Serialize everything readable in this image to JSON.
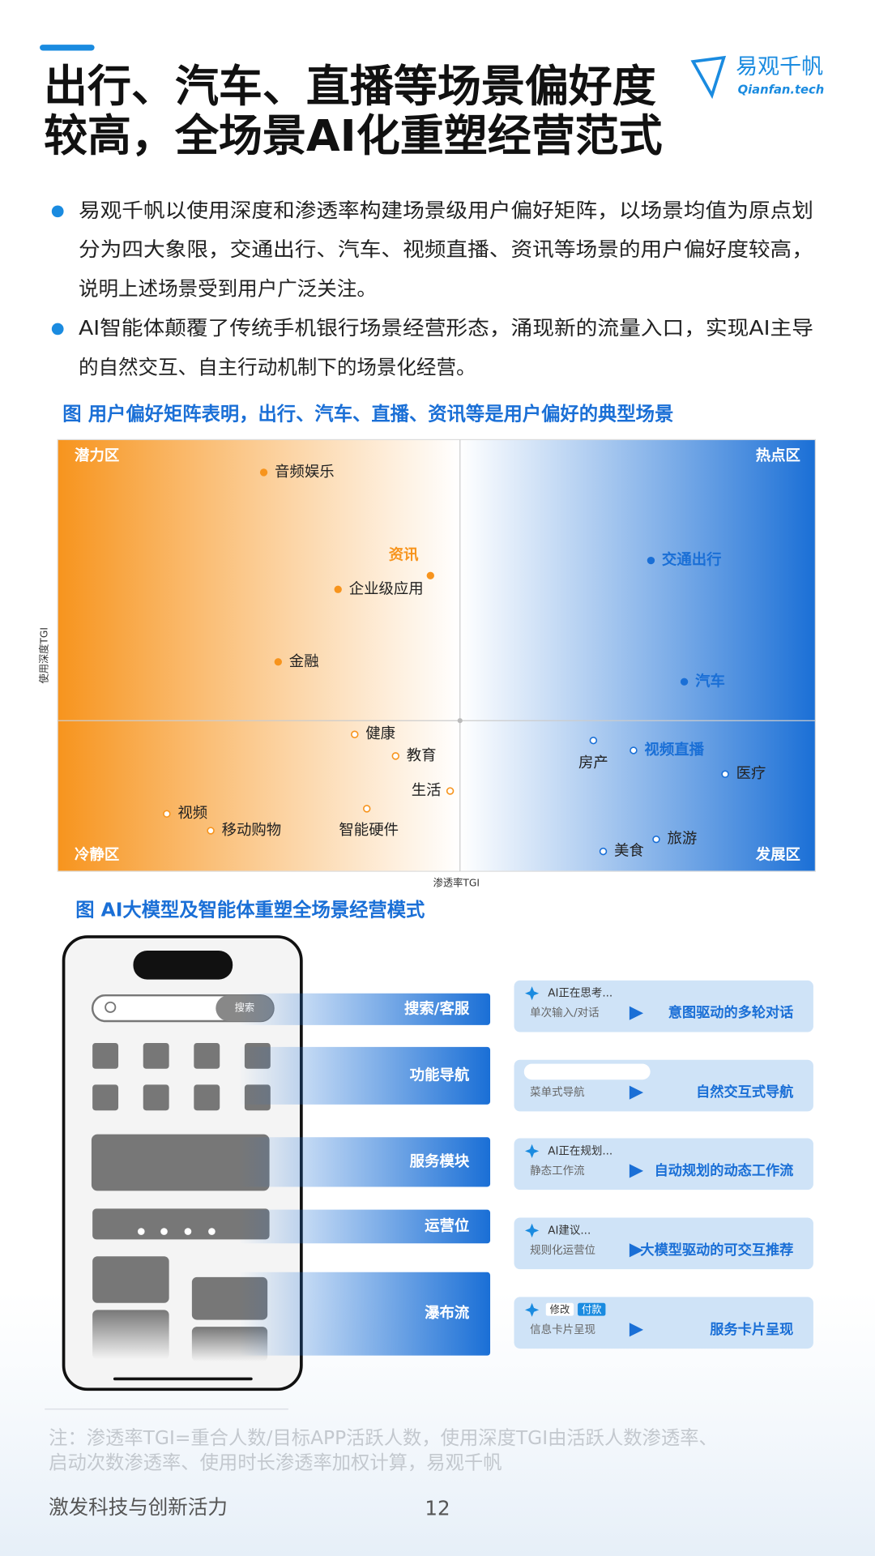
{
  "header": {
    "title_lines": [
      "出行、汽车、直播等场景偏好度",
      "较高，全场景AI化重塑经营范式"
    ],
    "logo_cn": "易观千帆",
    "logo_en": "Qianfan.tech"
  },
  "bullets": [
    [
      "易观千帆以使用深度和渗透率构建场景级用户偏好矩阵，以场景均值为原点划",
      "分为四大象限，交通出行、汽车、视频直播、资讯等场景的用户偏好度较高，",
      "说明上述场景受到用户广泛关注。"
    ],
    [
      "AI智能体颠覆了传统手机银行场景经营形态，涌现新的流量入口，实现AI主导",
      "的自然交互、自主行动机制下的场景化经营。"
    ]
  ],
  "chart_data": {
    "type": "scatter",
    "title": "图  用户偏好矩阵表明，出行、汽车、直播、资讯等是用户偏好的典型场景",
    "x_label": "渗透率TGI",
    "y_label": "使用深度TGI",
    "xlim": [
      0,
      100
    ],
    "ylim": [
      0,
      100
    ],
    "origin": [
      53.1,
      34.9
    ],
    "colors": {
      "left": "#f7941d",
      "right": "#1a6fd6"
    },
    "quadrants": {
      "top_left": "潜力区",
      "top_right": "热点区",
      "bottom_left": "冷静区",
      "bottom_right": "发展区"
    },
    "points": [
      {
        "name": "音频娱乐",
        "x": 27.2,
        "y": 92.4,
        "highlight": false
      },
      {
        "name": "资讯",
        "x": 49.2,
        "y": 68.5,
        "highlight": true
      },
      {
        "name": "企业级应用",
        "x": 37.0,
        "y": 65.3,
        "highlight": false
      },
      {
        "name": "交通出行",
        "x": 78.3,
        "y": 72.0,
        "highlight": true
      },
      {
        "name": "金融",
        "x": 29.1,
        "y": 48.5,
        "highlight": false
      },
      {
        "name": "汽车",
        "x": 82.7,
        "y": 43.9,
        "highlight": true
      },
      {
        "name": "健康",
        "x": 39.2,
        "y": 31.7,
        "highlight": false
      },
      {
        "name": "教育",
        "x": 44.6,
        "y": 26.7,
        "highlight": false
      },
      {
        "name": "生活",
        "x": 51.8,
        "y": 18.6,
        "highlight": false
      },
      {
        "name": "视频",
        "x": 14.4,
        "y": 13.3,
        "highlight": false
      },
      {
        "name": "移动购物",
        "x": 20.2,
        "y": 9.4,
        "highlight": false
      },
      {
        "name": "智能硬件",
        "x": 40.8,
        "y": 14.5,
        "highlight": false
      },
      {
        "name": "房产",
        "x": 70.7,
        "y": 30.3,
        "highlight": false
      },
      {
        "name": "视频直播",
        "x": 76.0,
        "y": 28.0,
        "highlight": true
      },
      {
        "name": "医疗",
        "x": 88.1,
        "y": 22.5,
        "highlight": false
      },
      {
        "name": "旅游",
        "x": 79.0,
        "y": 7.4,
        "highlight": false
      },
      {
        "name": "美食",
        "x": 72.0,
        "y": 4.6,
        "highlight": false
      }
    ]
  },
  "figure2": {
    "title": "图  AI大模型及智能体重塑全场景经营模式",
    "search_button": "搜索",
    "rows": [
      {
        "label": "搜索/客服",
        "tags": [
          "AI正在思考..."
        ],
        "old": "单次输入/对话",
        "new": "意图驱动的多轮对话"
      },
      {
        "label": "功能导航",
        "tags": [],
        "old": "菜单式导航",
        "new": "自然交互式导航"
      },
      {
        "label": "服务模块",
        "tags": [
          "AI正在规划..."
        ],
        "old": "静态工作流",
        "new": "自动规划的动态工作流"
      },
      {
        "label": "运营位",
        "tags": [
          "AI建议..."
        ],
        "old": "规则化运营位",
        "new": "大模型驱动的可交互推荐"
      },
      {
        "label": "瀑布流",
        "tags": [
          "修改",
          "付款"
        ],
        "old": "信息卡片呈现",
        "new": "服务卡片呈现"
      }
    ]
  },
  "footer": {
    "note_lines": [
      "注：渗透率TGI=重合人数/目标APP活跃人数，使用深度TGI由活跃人数渗透率、",
      "启动次数渗透率、使用时长渗透率加权计算，易观千帆"
    ],
    "slogan": "激发科技与创新活力",
    "page": 12
  }
}
